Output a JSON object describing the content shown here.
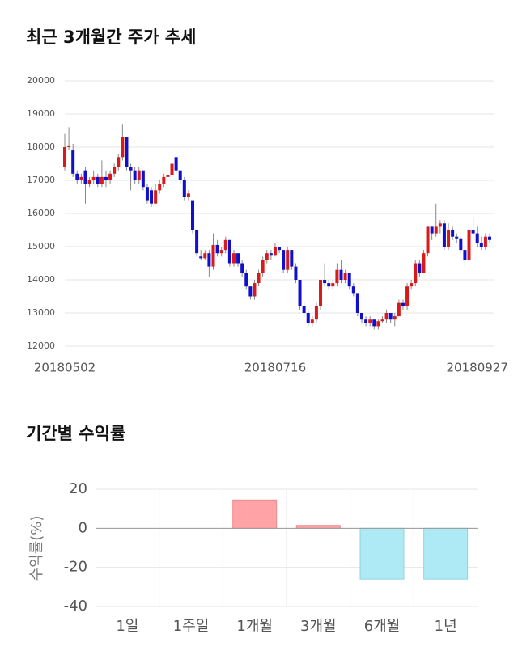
{
  "charts": [
    {
      "type": "candlestick",
      "title": "최근 3개월간 주가 추세",
      "categories": [
        "20180502",
        null,
        null,
        null,
        null,
        null,
        null,
        null,
        null,
        null,
        null,
        null,
        null,
        null,
        null,
        null,
        null,
        null,
        null,
        null,
        null,
        null,
        null,
        null,
        null,
        null,
        null,
        null,
        null,
        null,
        null,
        null,
        null,
        null,
        null,
        null,
        null,
        null,
        null,
        null,
        null,
        null,
        null,
        null,
        null,
        null,
        null,
        null,
        null,
        null,
        null,
        "20180716",
        null,
        null,
        null,
        null,
        null,
        null,
        null,
        null,
        null,
        null,
        null,
        null,
        null,
        null,
        null,
        null,
        null,
        null,
        null,
        null,
        null,
        null,
        null,
        null,
        null,
        null,
        null,
        null,
        null,
        null,
        null,
        null,
        null,
        null,
        null,
        null,
        null,
        null,
        null,
        null,
        null,
        null,
        null,
        null,
        null,
        null,
        null,
        null,
        "20180927",
        null,
        null,
        null
      ],
      "open": [
        17400,
        18000,
        17900,
        17200,
        17000,
        17300,
        16900,
        17000,
        17100,
        16900,
        17100,
        17000,
        17200,
        17400,
        17700,
        18300,
        17400,
        17300,
        17000,
        17300,
        16800,
        16700,
        16300,
        16700,
        16900,
        17100,
        17150,
        17700,
        17300,
        17000,
        16500,
        16400,
        15500,
        14700,
        14650,
        14800,
        14400,
        15050,
        14800,
        14900,
        15200,
        14500,
        14800,
        14500,
        14200,
        13800,
        13500,
        13900,
        14200,
        14600,
        14800,
        14750,
        15000,
        14900,
        14300,
        14900,
        14400,
        14000,
        13200,
        13000,
        12700,
        12800,
        13200,
        14000,
        13900,
        13800,
        13900,
        14300,
        14000,
        14200,
        13800,
        13600,
        13000,
        12800,
        12700,
        12800,
        12600,
        12750,
        12800,
        13000,
        12800,
        12900,
        13300,
        13200,
        13800,
        13900,
        14500,
        14200,
        14800,
        15600,
        15400,
        15600,
        15700,
        15000,
        15500,
        15300,
        15250,
        14900,
        14600,
        15500,
        15400,
        15100,
        15000,
        15300
      ],
      "high": [
        18400,
        18600,
        18100,
        17300,
        17200,
        17400,
        17100,
        17300,
        17200,
        17600,
        17300,
        17300,
        17500,
        17800,
        18700,
        18300,
        17500,
        17400,
        17400,
        17300,
        16900,
        16800,
        16900,
        17000,
        17200,
        17300,
        17600,
        17700,
        17300,
        17100,
        16700,
        16400,
        15500,
        14900,
        14900,
        14900,
        15400,
        15200,
        15000,
        15300,
        15200,
        14900,
        14800,
        14600,
        14300,
        13800,
        14000,
        14300,
        14700,
        14900,
        14900,
        15100,
        15000,
        14900,
        15000,
        14900,
        14500,
        14000,
        13300,
        13100,
        12900,
        13300,
        14000,
        14500,
        14000,
        14000,
        14500,
        14600,
        14300,
        14200,
        13900,
        13600,
        13000,
        12900,
        12900,
        12800,
        12800,
        12900,
        13100,
        13000,
        13000,
        13400,
        13400,
        13900,
        14000,
        14600,
        14600,
        14900,
        15600,
        15600,
        16300,
        15800,
        15800,
        15700,
        15600,
        15400,
        15300,
        15000,
        17200,
        15900,
        15600,
        15300,
        15400,
        15400
      ],
      "low": [
        17300,
        17900,
        17100,
        16900,
        16900,
        16300,
        16800,
        16900,
        16800,
        16800,
        16800,
        16900,
        17100,
        17300,
        17600,
        17300,
        16700,
        16900,
        16900,
        16700,
        16300,
        16200,
        16300,
        16600,
        16800,
        17000,
        17100,
        17200,
        16900,
        16400,
        16400,
        15400,
        14700,
        14600,
        14600,
        14100,
        14300,
        14700,
        14700,
        14800,
        14400,
        14400,
        14400,
        14100,
        13700,
        13400,
        13400,
        13800,
        14100,
        14500,
        14600,
        14700,
        14800,
        14200,
        14200,
        14300,
        13900,
        13100,
        12900,
        12600,
        12600,
        12700,
        13100,
        13800,
        13700,
        13700,
        13800,
        13900,
        13900,
        13700,
        13500,
        12900,
        12700,
        12600,
        12600,
        12500,
        12500,
        12700,
        12700,
        12700,
        12600,
        12900,
        13100,
        13100,
        13700,
        13800,
        14100,
        14200,
        14700,
        15200,
        15300,
        15400,
        14900,
        14900,
        15200,
        15100,
        14800,
        14400,
        14500,
        15200,
        15000,
        14900,
        14900,
        15100
      ],
      "close": [
        18000,
        18050,
        17200,
        17000,
        17100,
        16900,
        17000,
        17100,
        16900,
        17100,
        17000,
        17200,
        17400,
        17700,
        18300,
        17400,
        17300,
        17000,
        17300,
        16800,
        16400,
        16300,
        16700,
        16900,
        17100,
        17150,
        17500,
        17300,
        17000,
        16500,
        16600,
        15500,
        14800,
        14650,
        14800,
        14400,
        15050,
        14800,
        14900,
        15200,
        14500,
        14800,
        14500,
        14200,
        13800,
        13500,
        13900,
        14200,
        14600,
        14800,
        14750,
        15000,
        14900,
        14300,
        14900,
        14400,
        14000,
        13200,
        13000,
        12700,
        12800,
        13200,
        14000,
        13900,
        13800,
        13900,
        14300,
        14000,
        14200,
        13800,
        13600,
        13000,
        12800,
        12700,
        12800,
        12600,
        12750,
        12800,
        13000,
        12800,
        12900,
        13300,
        13200,
        13800,
        13900,
        14500,
        14200,
        14800,
        15600,
        15400,
        15600,
        15700,
        15000,
        15500,
        15300,
        15250,
        14900,
        14600,
        15500,
        15400,
        15100,
        15000,
        15300,
        15200
      ],
      "up_color": "#d91a1a",
      "down_color": "#0f0fcc",
      "ylim": [
        12000,
        20000
      ],
      "yticks": [
        12000,
        13000,
        14000,
        15000,
        16000,
        17000,
        18000,
        19000,
        20000
      ],
      "grid": true
    },
    {
      "type": "bar",
      "title": "기간별 수익률",
      "ylabel": "수익률(%)",
      "categories": [
        "1일",
        "1주일",
        "1개월",
        "3개월",
        "6개월",
        "1년"
      ],
      "values": [
        0,
        0,
        14.5,
        1.5,
        -26,
        -26
      ],
      "positive_color": "#ffa3a6",
      "negative_color": "#aeeaf5",
      "ylim": [
        -40,
        20
      ],
      "yticks": [
        -40,
        -20,
        0,
        20
      ],
      "grid": true
    }
  ]
}
